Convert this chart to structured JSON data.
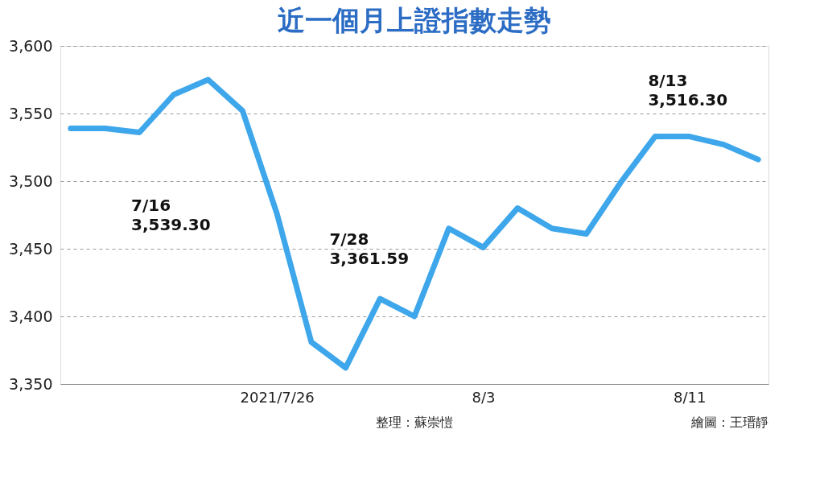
{
  "chart_data": {
    "type": "line",
    "title": "近一個月上證指數走勢",
    "categories": [
      null,
      null,
      null,
      null,
      null,
      null,
      "2021/7/26",
      null,
      null,
      null,
      null,
      null,
      "8/3",
      null,
      null,
      null,
      null,
      null,
      "8/11",
      null,
      null
    ],
    "series": [
      {
        "color": "#3ea6ea",
        "values": [
          3539,
          3539,
          3536,
          3564,
          3575,
          3552,
          3476,
          3381,
          3362,
          3413,
          3400,
          3465,
          3451,
          3480,
          3465,
          3461,
          3499,
          3533,
          3533,
          3527,
          3516
        ]
      }
    ],
    "ylim": [
      3350,
      3600
    ],
    "yticks": [
      {
        "value": 3350,
        "label": "3,350"
      },
      {
        "value": 3400,
        "label": "3,400"
      },
      {
        "value": 3450,
        "label": "3,450"
      },
      {
        "value": 3500,
        "label": "3,500"
      },
      {
        "value": 3550,
        "label": "3,550"
      },
      {
        "value": 3600,
        "label": "3,600"
      }
    ],
    "grid": "y",
    "marker": "none",
    "line_style": "solid",
    "annotations": [
      "7/16\n3,539.30",
      "7/28\n3,361.59",
      "8/13\n3,516.30",
      "整理：蘇崇愷",
      "繪圖：王瑨靜"
    ]
  }
}
